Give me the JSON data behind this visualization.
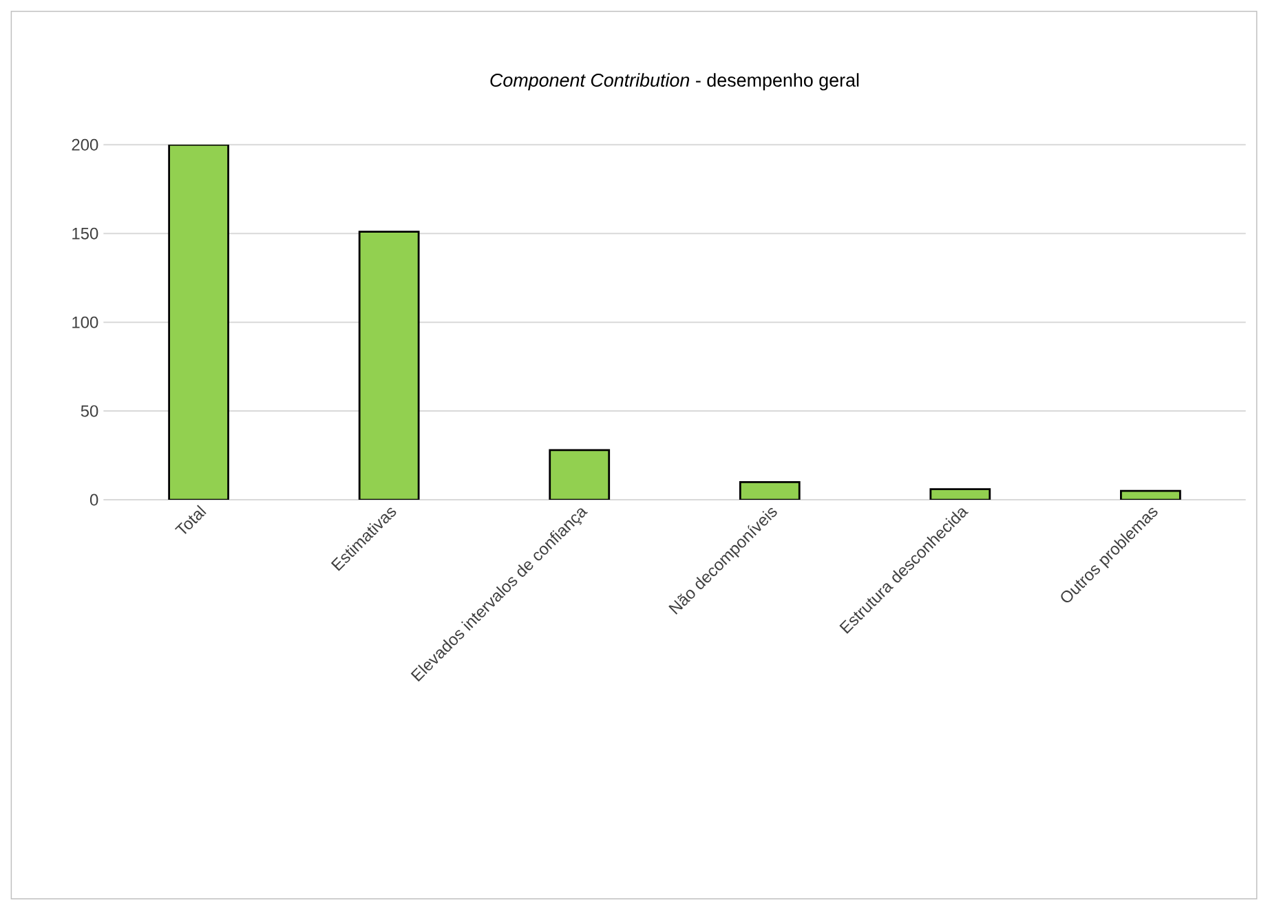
{
  "chart_data": {
    "type": "bar",
    "title": "*Component Contribution* - desempenho geral",
    "categories": [
      "Total",
      "Estimativas",
      "Elevados intervalos de confiança",
      "Não decomponíveis",
      "Estrutura desconhecida",
      "Outros problemas"
    ],
    "values": [
      200,
      151,
      28,
      10,
      6,
      5
    ],
    "color": "#92d050",
    "ylim": [
      0,
      200
    ],
    "yticks": [
      0,
      50,
      100,
      150,
      200
    ],
    "grid": "y"
  }
}
